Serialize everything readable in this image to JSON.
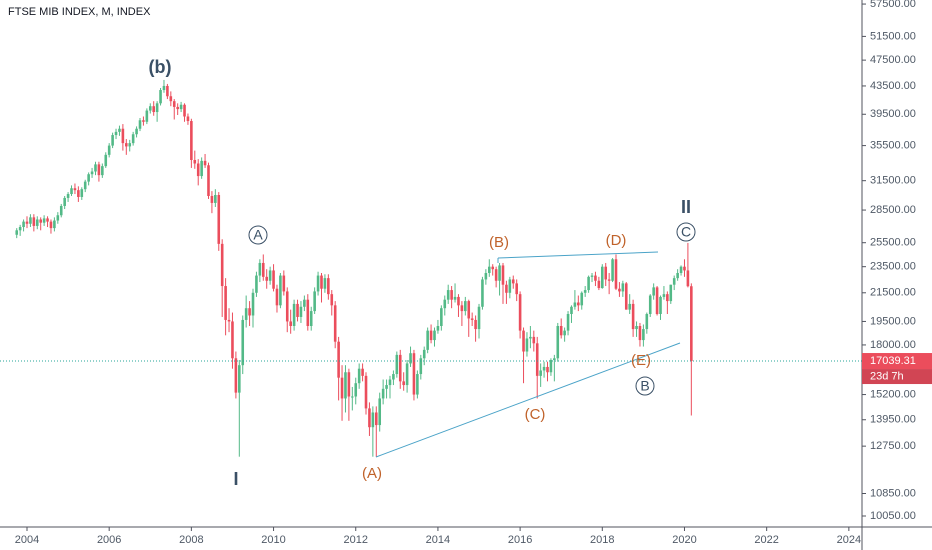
{
  "chart_data": {
    "type": "candlestick",
    "title": "FTSE MIB INDEX, M, INDEX",
    "log_scale": true,
    "grid": false,
    "up_color": "#53b987",
    "down_color": "#eb4d5c",
    "price_label": "17039.31",
    "countdown": "23d 7h",
    "annotations": [
      "(b)",
      "I",
      "A",
      "(A)",
      "(B)",
      "(C)",
      "(D)",
      "(E)",
      "II",
      "C",
      "B"
    ],
    "xlim": [
      2003.343,
      2024.32
    ],
    "xticks": [
      2004,
      2006,
      2008,
      2010,
      2012,
      2014,
      2016,
      2018,
      2020,
      2022,
      2024
    ],
    "ylim": [
      9680,
      58300
    ],
    "yticks": [
      {
        "value": 57500,
        "label": "57500.00"
      },
      {
        "value": 51500,
        "label": "51500.00"
      },
      {
        "value": 47500,
        "label": "47500.00"
      },
      {
        "value": 43500,
        "label": "43500.00"
      },
      {
        "value": 39500,
        "label": "39500.00"
      },
      {
        "value": 35500,
        "label": "35500.00"
      },
      {
        "value": 31500,
        "label": "31500.00"
      },
      {
        "value": 28500,
        "label": "28500.00"
      },
      {
        "value": 25500,
        "label": "25500.00"
      },
      {
        "value": 23500,
        "label": "23500.00"
      },
      {
        "value": 21500,
        "label": "21500.00"
      },
      {
        "value": 19500,
        "label": "19500.00"
      },
      {
        "value": 18000,
        "label": "18000.00"
      },
      {
        "value": 15200,
        "label": "15200.00"
      },
      {
        "value": 13950,
        "label": "13950.00"
      },
      {
        "value": 12750,
        "label": "12750.00"
      },
      {
        "value": 10850,
        "label": "10850.00"
      },
      {
        "value": 10050,
        "label": "10050.00"
      }
    ],
    "x": [
      "2003-10",
      "2003-11",
      "2003-12",
      "2004-01",
      "2004-02",
      "2004-03",
      "2004-04",
      "2004-05",
      "2004-06",
      "2004-07",
      "2004-08",
      "2004-09",
      "2004-10",
      "2004-11",
      "2004-12",
      "2005-01",
      "2005-02",
      "2005-03",
      "2005-04",
      "2005-05",
      "2005-06",
      "2005-07",
      "2005-08",
      "2005-09",
      "2005-10",
      "2005-11",
      "2005-12",
      "2006-01",
      "2006-02",
      "2006-03",
      "2006-04",
      "2006-05",
      "2006-06",
      "2006-07",
      "2006-08",
      "2006-09",
      "2006-10",
      "2006-11",
      "2006-12",
      "2007-01",
      "2007-02",
      "2007-03",
      "2007-04",
      "2007-05",
      "2007-06",
      "2007-07",
      "2007-08",
      "2007-09",
      "2007-10",
      "2007-11",
      "2007-12",
      "2008-01",
      "2008-02",
      "2008-03",
      "2008-04",
      "2008-05",
      "2008-06",
      "2008-07",
      "2008-08",
      "2008-09",
      "2008-10",
      "2008-11",
      "2008-12",
      "2009-01",
      "2009-02",
      "2009-03",
      "2009-04",
      "2009-05",
      "2009-06",
      "2009-07",
      "2009-08",
      "2009-09",
      "2009-10",
      "2009-11",
      "2009-12",
      "2010-01",
      "2010-02",
      "2010-03",
      "2010-04",
      "2010-05",
      "2010-06",
      "2010-07",
      "2010-08",
      "2010-09",
      "2010-10",
      "2010-11",
      "2010-12",
      "2011-01",
      "2011-02",
      "2011-03",
      "2011-04",
      "2011-05",
      "2011-06",
      "2011-07",
      "2011-08",
      "2011-09",
      "2011-10",
      "2011-11",
      "2011-12",
      "2012-01",
      "2012-02",
      "2012-03",
      "2012-04",
      "2012-05",
      "2012-06",
      "2012-07",
      "2012-08",
      "2012-09",
      "2012-10",
      "2012-11",
      "2012-12",
      "2013-01",
      "2013-02",
      "2013-03",
      "2013-04",
      "2013-05",
      "2013-06",
      "2013-07",
      "2013-08",
      "2013-09",
      "2013-10",
      "2013-11",
      "2013-12",
      "2014-01",
      "2014-02",
      "2014-03",
      "2014-04",
      "2014-05",
      "2014-06",
      "2014-07",
      "2014-08",
      "2014-09",
      "2014-10",
      "2014-11",
      "2014-12",
      "2015-01",
      "2015-02",
      "2015-03",
      "2015-04",
      "2015-05",
      "2015-06",
      "2015-07",
      "2015-08",
      "2015-09",
      "2015-10",
      "2015-11",
      "2015-12",
      "2016-01",
      "2016-02",
      "2016-03",
      "2016-04",
      "2016-05",
      "2016-06",
      "2016-07",
      "2016-08",
      "2016-09",
      "2016-10",
      "2016-11",
      "2016-12",
      "2017-01",
      "2017-02",
      "2017-03",
      "2017-04",
      "2017-05",
      "2017-06",
      "2017-07",
      "2017-08",
      "2017-09",
      "2017-10",
      "2017-11",
      "2017-12",
      "2018-01",
      "2018-02",
      "2018-03",
      "2018-04",
      "2018-05",
      "2018-06",
      "2018-07",
      "2018-08",
      "2018-09",
      "2018-10",
      "2018-11",
      "2018-12",
      "2019-01",
      "2019-02",
      "2019-03",
      "2019-04",
      "2019-05",
      "2019-06",
      "2019-07",
      "2019-08",
      "2019-09",
      "2019-10",
      "2019-11",
      "2019-12",
      "2020-01",
      "2020-02",
      "2020-03"
    ],
    "open": [
      26200,
      26600,
      26900,
      27400,
      27200,
      27800,
      27000,
      27600,
      27300,
      27700,
      27400,
      26800,
      27500,
      28000,
      28900,
      29700,
      30100,
      30700,
      30500,
      29800,
      30600,
      31400,
      32200,
      32500,
      33300,
      32100,
      33100,
      34400,
      35500,
      36800,
      37200,
      37600,
      35800,
      35400,
      35800,
      36900,
      37600,
      38700,
      38500,
      40000,
      40600,
      39800,
      41000,
      42900,
      43500,
      42000,
      41300,
      40500,
      40200,
      40800,
      39200,
      38600,
      33800,
      33400,
      32000,
      33700,
      33200,
      29900,
      29200,
      30000,
      25400,
      22000,
      19600,
      19500,
      17200,
      15300,
      16800,
      19600,
      20400,
      19900,
      21500,
      22800,
      23800,
      22700,
      22400,
      23200,
      21800,
      20600,
      22800,
      21600,
      19500,
      19200,
      20700,
      19800,
      20500,
      21000,
      19200,
      20200,
      21600,
      22800,
      21800,
      22600,
      21400,
      20600,
      18200,
      16100,
      15000,
      16400,
      15100,
      15100,
      15800,
      16600,
      16200,
      14500,
      13600,
      14300,
      13700,
      15000,
      15500,
      15700,
      16000,
      16300,
      17400,
      15900,
      15700,
      16900,
      17500,
      15200,
      16300,
      17200,
      17700,
      18900,
      18300,
      18900,
      19200,
      20400,
      21000,
      21700,
      21000,
      21200,
      20600,
      20200,
      20900,
      19700,
      19600,
      19000,
      20500,
      22500,
      23000,
      23500,
      23300,
      22400,
      23600,
      22100,
      21500,
      22500,
      22200,
      21400,
      18900,
      17600,
      18400,
      18500,
      18100,
      16200,
      16500,
      16700,
      16400,
      17100,
      17200,
      19200,
      18600,
      18900,
      20000,
      20500,
      20800,
      20600,
      21500,
      21700,
      22700,
      22800,
      22400,
      21850,
      23500,
      22500,
      22400,
      24100,
      21800,
      21600,
      22200,
      20300,
      20700,
      19000,
      19200,
      18300,
      19000,
      20000,
      21300,
      21900,
      20000,
      21200,
      21400,
      20900,
      22100,
      22600,
      23000,
      23500,
      23200,
      21985
    ],
    "high": [
      26800,
      27100,
      27600,
      27900,
      28100,
      28100,
      27900,
      27800,
      28000,
      27900,
      27600,
      27800,
      28300,
      29100,
      29900,
      30300,
      31000,
      31200,
      30900,
      30800,
      31600,
      32400,
      32900,
      33600,
      33600,
      33400,
      34700,
      35800,
      37100,
      37600,
      38000,
      38200,
      36300,
      36200,
      37200,
      37900,
      39000,
      39200,
      40300,
      41000,
      41300,
      41300,
      43200,
      44400,
      43800,
      42700,
      41600,
      41000,
      41200,
      41000,
      39600,
      38900,
      34900,
      33900,
      34100,
      34500,
      33500,
      30400,
      30600,
      30300,
      25800,
      22600,
      20400,
      20100,
      17600,
      17100,
      19900,
      21300,
      20900,
      21800,
      23100,
      24100,
      24500,
      23300,
      23500,
      23700,
      22100,
      23000,
      23200,
      21900,
      20300,
      21000,
      21000,
      20900,
      21300,
      21400,
      20500,
      21900,
      23100,
      23000,
      22900,
      22900,
      21700,
      20900,
      18500,
      16800,
      16800,
      16600,
      15600,
      16100,
      16900,
      16900,
      16400,
      14800,
      14600,
      14600,
      15300,
      16000,
      16000,
      16200,
      16500,
      17600,
      17700,
      16400,
      17100,
      17900,
      17700,
      16500,
      17400,
      17900,
      19100,
      19300,
      19100,
      19600,
      20600,
      21300,
      22100,
      22000,
      22200,
      21400,
      20900,
      21200,
      21000,
      20100,
      19900,
      20700,
      22700,
      23300,
      24100,
      23700,
      23500,
      23800,
      23800,
      22400,
      22700,
      22800,
      22500,
      21600,
      19100,
      18800,
      19200,
      18900,
      18500,
      16900,
      17000,
      17000,
      17200,
      17400,
      19400,
      19700,
      19100,
      20200,
      20600,
      21700,
      21300,
      21600,
      22000,
      22800,
      23000,
      23100,
      22700,
      23700,
      23800,
      23000,
      24200,
      24500,
      22300,
      22400,
      22300,
      21400,
      21000,
      19500,
      19400,
      19300,
      20100,
      21400,
      22200,
      22000,
      21300,
      22000,
      21600,
      22100,
      22800,
      23300,
      23600,
      24100,
      25483,
      22200
    ],
    "low": [
      25900,
      26100,
      26500,
      26800,
      26900,
      26500,
      26700,
      26600,
      27000,
      26900,
      26300,
      26500,
      27200,
      27800,
      28600,
      29300,
      29900,
      30100,
      29300,
      29500,
      30300,
      31000,
      31800,
      32100,
      31400,
      31800,
      32900,
      34100,
      35200,
      36300,
      36700,
      34900,
      34400,
      34800,
      35500,
      36500,
      37300,
      38000,
      38200,
      39600,
      39300,
      38500,
      40700,
      42500,
      41600,
      40600,
      38800,
      39400,
      39800,
      38500,
      38100,
      32900,
      32800,
      31000,
      31700,
      32900,
      29600,
      28200,
      28800,
      24800,
      19800,
      18600,
      18800,
      16600,
      15000,
      12300,
      16300,
      19100,
      19200,
      19100,
      21200,
      22300,
      22400,
      21800,
      22100,
      21600,
      20100,
      20400,
      21300,
      18800,
      18700,
      18900,
      19500,
      19400,
      20200,
      18900,
      18900,
      20000,
      21300,
      20800,
      21500,
      21000,
      19900,
      17800,
      14900,
      13900,
      14300,
      13900,
      14400,
      14700,
      15500,
      15900,
      14200,
      13200,
      12300,
      12300,
      13400,
      14700,
      15000,
      15000,
      15700,
      16100,
      15500,
      15400,
      15300,
      16700,
      14900,
      15000,
      16000,
      16800,
      17500,
      18100,
      17900,
      18700,
      18900,
      19900,
      20700,
      20400,
      20800,
      19800,
      19200,
      19900,
      18500,
      19200,
      18200,
      18400,
      20300,
      22100,
      22700,
      22800,
      21900,
      21300,
      20700,
      20700,
      21100,
      21800,
      20900,
      18400,
      15800,
      17300,
      17800,
      17600,
      15000,
      15600,
      16100,
      15900,
      16200,
      15900,
      17000,
      18400,
      18200,
      18600,
      19400,
      20300,
      20200,
      20300,
      21200,
      21500,
      22300,
      22000,
      21700,
      21800,
      22000,
      21400,
      22300,
      21700,
      21200,
      21200,
      20300,
      20000,
      18500,
      18500,
      17900,
      17900,
      18700,
      19800,
      21000,
      19900,
      19600,
      21000,
      20000,
      20700,
      21700,
      22400,
      22800,
      22700,
      21900,
      14153
    ],
    "close": [
      26600,
      26900,
      27400,
      27200,
      27800,
      27000,
      27600,
      27300,
      27700,
      27400,
      26800,
      27500,
      28000,
      28900,
      29700,
      30100,
      30700,
      30500,
      29800,
      30600,
      31400,
      32200,
      32500,
      33300,
      32100,
      33100,
      34400,
      35500,
      36800,
      37200,
      37600,
      35800,
      35400,
      35800,
      36900,
      37600,
      38700,
      38500,
      40000,
      40600,
      39800,
      41000,
      42900,
      43500,
      42000,
      41300,
      40500,
      40200,
      40800,
      39200,
      38600,
      33800,
      33400,
      32000,
      33700,
      33200,
      29900,
      29200,
      30000,
      25400,
      22000,
      19600,
      19500,
      17200,
      15300,
      16800,
      19600,
      20400,
      19900,
      21500,
      22800,
      23800,
      22700,
      22400,
      23200,
      21800,
      20600,
      22800,
      21600,
      19500,
      19200,
      20700,
      19800,
      20500,
      21000,
      19200,
      20200,
      21600,
      22800,
      21800,
      22600,
      21400,
      20600,
      18200,
      16100,
      15000,
      16400,
      15100,
      15100,
      15800,
      16600,
      16200,
      14500,
      13600,
      14300,
      13700,
      15000,
      15500,
      15700,
      16000,
      16300,
      17400,
      15900,
      15700,
      16900,
      17500,
      15200,
      16300,
      17200,
      17700,
      18900,
      18300,
      18900,
      19200,
      20400,
      21000,
      21700,
      21000,
      21200,
      20600,
      20200,
      20900,
      19700,
      19600,
      19000,
      20500,
      22500,
      23000,
      23500,
      23300,
      22400,
      23600,
      22100,
      21500,
      22500,
      22200,
      21400,
      18900,
      17600,
      18400,
      18500,
      18100,
      16200,
      16500,
      16700,
      16400,
      17100,
      17200,
      19200,
      18600,
      18900,
      20000,
      20500,
      20800,
      20600,
      21500,
      21700,
      22700,
      22800,
      22400,
      21850,
      23500,
      22500,
      22400,
      24100,
      21800,
      21600,
      22200,
      20300,
      20700,
      19000,
      19200,
      18300,
      19000,
      20000,
      21300,
      21900,
      20000,
      21200,
      21400,
      20900,
      22100,
      22600,
      23000,
      23500,
      23200,
      21985,
      17039.31
    ]
  }
}
